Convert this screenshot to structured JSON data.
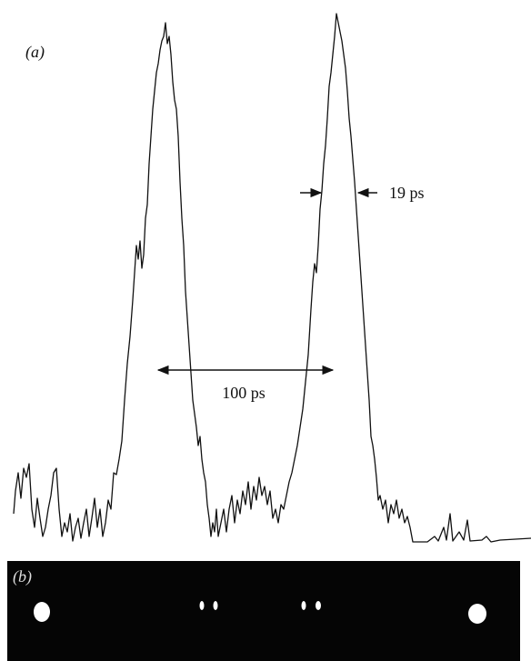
{
  "panel_a": {
    "label": "(a)",
    "width_label": "19 ps",
    "separation_label": "100 ps"
  },
  "panel_b": {
    "label": "(b)"
  }
}
